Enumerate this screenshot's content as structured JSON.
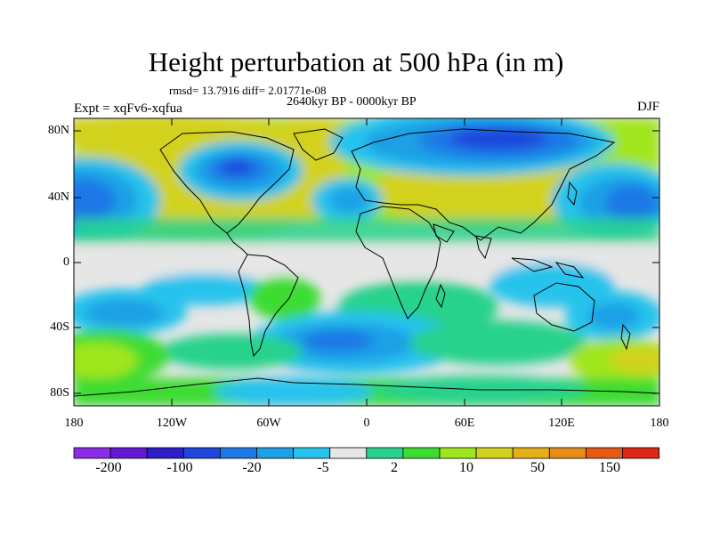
{
  "title": "Height perturbation at 500 hPa (in m)",
  "stats": "rmsd= 13.7916 diff= 2.01771e-08",
  "period": "2640kyr BP - 0000kyr BP",
  "experiment": "Expt = xqFv6-xqfua",
  "season": "DJF",
  "lat_labels": [
    "80N",
    "40N",
    "0",
    "40S",
    "80S"
  ],
  "lon_labels": [
    "180",
    "120W",
    "60W",
    "0",
    "60E",
    "120E",
    "180"
  ],
  "colorbar": {
    "colors": [
      "#8c2ce6",
      "#6419d2",
      "#2d1ec8",
      "#1e46dc",
      "#1e78e6",
      "#1ea0e6",
      "#28c3ec",
      "#e6e6e6",
      "#28d28c",
      "#3cdc32",
      "#a0e61e",
      "#d2d21e",
      "#e6af19",
      "#e68c19",
      "#e65a14",
      "#dc2814"
    ],
    "labels": [
      "-200",
      "-100",
      "-20",
      "-5",
      "2",
      "10",
      "50",
      "150"
    ]
  }
}
